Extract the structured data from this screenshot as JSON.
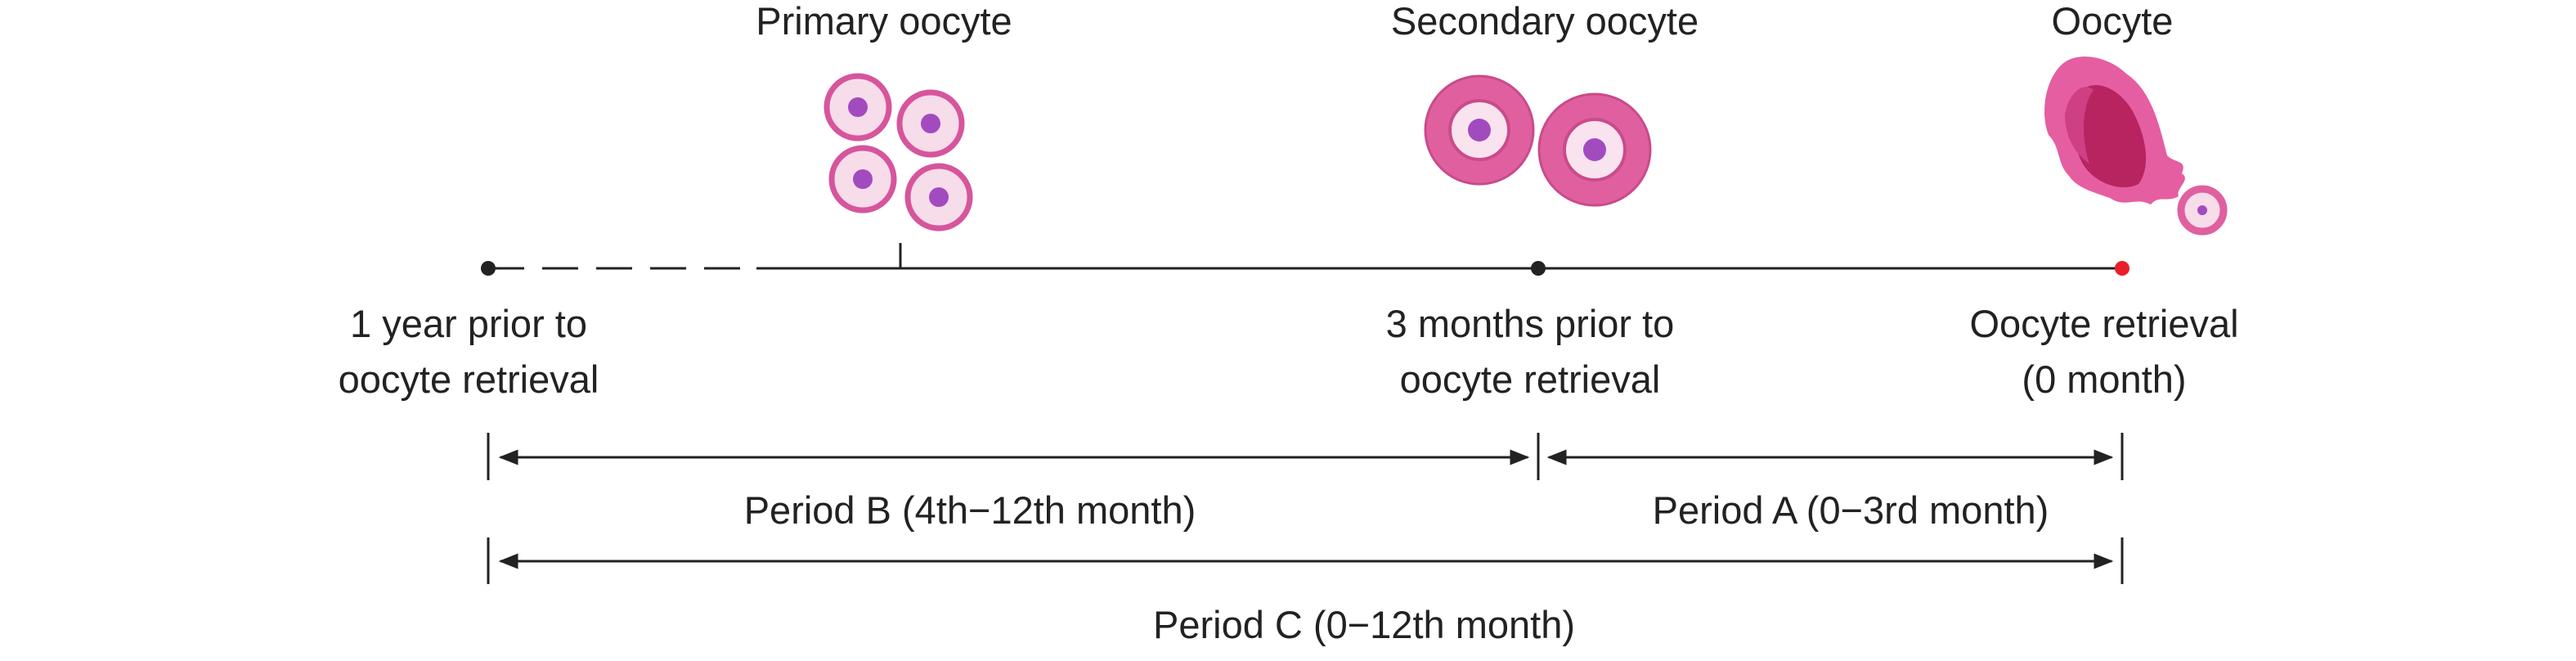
{
  "stages": [
    {
      "label": "Primary oocyte"
    },
    {
      "label": "Secondary oocyte"
    },
    {
      "label": "Oocyte"
    }
  ],
  "timepoints": [
    {
      "lines": [
        "1 year prior to",
        "oocyte retrieval"
      ]
    },
    {
      "lines": [
        "3 months prior to",
        "oocyte retrieval"
      ]
    },
    {
      "lines": [
        "Oocyte retrieval",
        "(0 month)"
      ]
    }
  ],
  "periods": [
    {
      "label": "Period B (4th−12th month)"
    },
    {
      "label": "Period A (0−3rd month)"
    },
    {
      "label": "Period C (0−12th month)"
    }
  ]
}
